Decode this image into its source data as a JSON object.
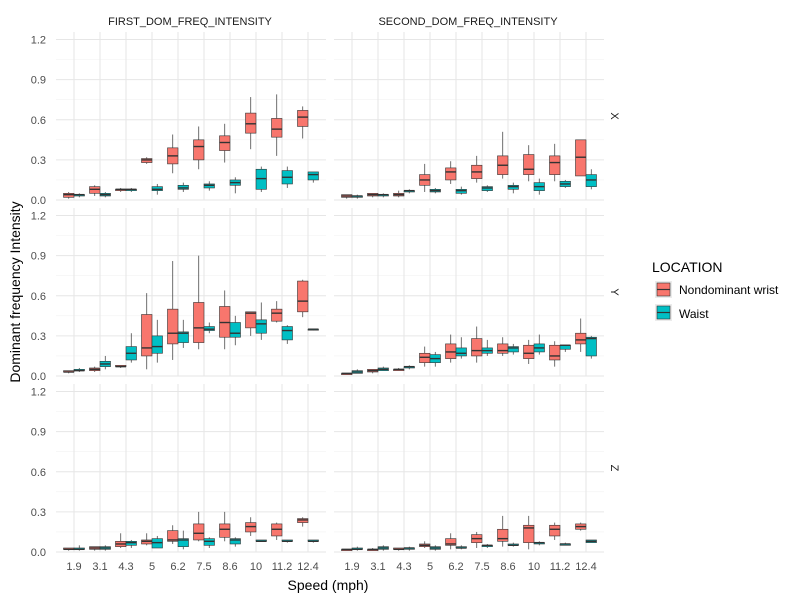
{
  "chart_data": {
    "type": "box",
    "xlabel": "Speed (mph)",
    "ylabel": "Dominant frequency Intensity",
    "categories": [
      "1.9",
      "3.1",
      "4.3",
      "5",
      "6.2",
      "7.5",
      "8.6",
      "10",
      "11.2",
      "12.4"
    ],
    "yticks": [
      "0.0",
      "0.3",
      "0.6",
      "0.9",
      "1.2"
    ],
    "ylim": [
      0,
      1.2
    ],
    "grid": true,
    "column_facets": [
      "FIRST_DOM_FREQ_INTENSITY",
      "SECOND_DOM_FREQ_INTENSITY"
    ],
    "row_facets": [
      "X",
      "Y",
      "Z"
    ],
    "legend": {
      "title": "LOCATION",
      "placement": "right",
      "items": [
        {
          "label": "Nondominant wrist",
          "color": "#f8766d"
        },
        {
          "label": "Waist",
          "color": "#00bfc4"
        }
      ]
    },
    "panels": [
      {
        "row": "X",
        "col": "FIRST_DOM_FREQ_INTENSITY",
        "series": {
          "Nondominant wrist": [
            [
              0.01,
              0.02,
              0.04,
              0.05,
              0.06
            ],
            [
              0.03,
              0.05,
              0.08,
              0.1,
              0.11
            ],
            [
              0.06,
              0.07,
              0.08,
              0.08,
              0.09
            ],
            [
              0.27,
              0.28,
              0.3,
              0.31,
              0.32
            ],
            [
              0.2,
              0.27,
              0.33,
              0.39,
              0.49
            ],
            [
              0.23,
              0.3,
              0.4,
              0.45,
              0.55
            ],
            [
              0.28,
              0.37,
              0.43,
              0.48,
              0.57
            ],
            [
              0.38,
              0.5,
              0.57,
              0.65,
              0.77
            ],
            [
              0.33,
              0.47,
              0.53,
              0.61,
              0.79
            ],
            [
              0.46,
              0.55,
              0.62,
              0.67,
              0.7
            ]
          ],
          "Waist": [
            [
              0.02,
              0.03,
              0.04,
              0.04,
              0.05
            ],
            [
              0.02,
              0.03,
              0.04,
              0.05,
              0.06
            ],
            [
              0.06,
              0.07,
              0.08,
              0.08,
              0.09
            ],
            [
              0.04,
              0.07,
              0.08,
              0.1,
              0.12
            ],
            [
              0.06,
              0.08,
              0.09,
              0.11,
              0.13
            ],
            [
              0.07,
              0.09,
              0.11,
              0.12,
              0.14
            ],
            [
              0.05,
              0.11,
              0.13,
              0.15,
              0.17
            ],
            [
              0.06,
              0.08,
              0.16,
              0.23,
              0.25
            ],
            [
              0.09,
              0.12,
              0.17,
              0.22,
              0.25
            ],
            [
              0.13,
              0.15,
              0.19,
              0.21,
              0.21
            ]
          ]
        }
      },
      {
        "row": "X",
        "col": "SECOND_DOM_FREQ_INTENSITY",
        "series": {
          "Nondominant wrist": [
            [
              0.01,
              0.02,
              0.03,
              0.04,
              0.04
            ],
            [
              0.02,
              0.03,
              0.04,
              0.05,
              0.05
            ],
            [
              0.02,
              0.03,
              0.04,
              0.05,
              0.07
            ],
            [
              0.06,
              0.11,
              0.15,
              0.19,
              0.27
            ],
            [
              0.12,
              0.15,
              0.21,
              0.24,
              0.29
            ],
            [
              0.13,
              0.16,
              0.21,
              0.26,
              0.33
            ],
            [
              0.16,
              0.19,
              0.26,
              0.33,
              0.51
            ],
            [
              0.14,
              0.19,
              0.23,
              0.34,
              0.41
            ],
            [
              0.14,
              0.19,
              0.28,
              0.33,
              0.42
            ],
            [
              0.18,
              0.18,
              0.32,
              0.45,
              0.45
            ]
          ],
          "Waist": [
            [
              0.01,
              0.02,
              0.03,
              0.03,
              0.04
            ],
            [
              0.02,
              0.03,
              0.04,
              0.04,
              0.05
            ],
            [
              0.05,
              0.06,
              0.07,
              0.07,
              0.08
            ],
            [
              0.05,
              0.06,
              0.07,
              0.08,
              0.09
            ],
            [
              0.04,
              0.05,
              0.07,
              0.08,
              0.1
            ],
            [
              0.06,
              0.07,
              0.09,
              0.1,
              0.11
            ],
            [
              0.05,
              0.08,
              0.1,
              0.11,
              0.13
            ],
            [
              0.04,
              0.07,
              0.1,
              0.13,
              0.16
            ],
            [
              0.09,
              0.1,
              0.12,
              0.14,
              0.15
            ],
            [
              0.08,
              0.1,
              0.15,
              0.19,
              0.23
            ]
          ]
        }
      },
      {
        "row": "Y",
        "col": "FIRST_DOM_FREQ_INTENSITY",
        "series": {
          "Nondominant wrist": [
            [
              0.02,
              0.03,
              0.03,
              0.04,
              0.04
            ],
            [
              0.03,
              0.04,
              0.05,
              0.06,
              0.07
            ],
            [
              0.06,
              0.07,
              0.07,
              0.08,
              0.08
            ],
            [
              0.05,
              0.15,
              0.21,
              0.46,
              0.62
            ],
            [
              0.12,
              0.24,
              0.32,
              0.5,
              0.86
            ],
            [
              0.2,
              0.25,
              0.36,
              0.55,
              0.9
            ],
            [
              0.2,
              0.29,
              0.4,
              0.52,
              0.64
            ],
            [
              0.3,
              0.36,
              0.47,
              0.48,
              0.48
            ],
            [
              0.4,
              0.41,
              0.47,
              0.5,
              0.56
            ],
            [
              0.44,
              0.48,
              0.56,
              0.71,
              0.72
            ]
          ],
          "Waist": [
            [
              0.03,
              0.04,
              0.04,
              0.05,
              0.06
            ],
            [
              0.05,
              0.07,
              0.09,
              0.11,
              0.15
            ],
            [
              0.1,
              0.12,
              0.17,
              0.22,
              0.32
            ],
            [
              0.1,
              0.17,
              0.22,
              0.3,
              0.42
            ],
            [
              0.21,
              0.25,
              0.32,
              0.33,
              0.42
            ],
            [
              0.32,
              0.34,
              0.35,
              0.37,
              0.4
            ],
            [
              0.23,
              0.29,
              0.32,
              0.4,
              0.45
            ],
            [
              0.27,
              0.32,
              0.39,
              0.42,
              0.55
            ],
            [
              0.24,
              0.27,
              0.34,
              0.37,
              0.38
            ],
            [
              0.34,
              0.35,
              0.35,
              0.35,
              0.35
            ]
          ]
        }
      },
      {
        "row": "Y",
        "col": "SECOND_DOM_FREQ_INTENSITY",
        "series": {
          "Nondominant wrist": [
            [
              0.01,
              0.01,
              0.02,
              0.02,
              0.02
            ],
            [
              0.02,
              0.03,
              0.04,
              0.05,
              0.05
            ],
            [
              0.04,
              0.04,
              0.05,
              0.05,
              0.06
            ],
            [
              0.07,
              0.1,
              0.14,
              0.17,
              0.22
            ],
            [
              0.1,
              0.13,
              0.18,
              0.24,
              0.31
            ],
            [
              0.1,
              0.15,
              0.19,
              0.28,
              0.37
            ],
            [
              0.15,
              0.17,
              0.19,
              0.24,
              0.29
            ],
            [
              0.09,
              0.13,
              0.17,
              0.23,
              0.27
            ],
            [
              0.07,
              0.12,
              0.15,
              0.23,
              0.26
            ],
            [
              0.18,
              0.24,
              0.27,
              0.32,
              0.43
            ]
          ],
          "Waist": [
            [
              0.02,
              0.02,
              0.03,
              0.04,
              0.05
            ],
            [
              0.04,
              0.04,
              0.05,
              0.06,
              0.07
            ],
            [
              0.05,
              0.06,
              0.07,
              0.07,
              0.08
            ],
            [
              0.07,
              0.1,
              0.13,
              0.16,
              0.18
            ],
            [
              0.13,
              0.15,
              0.17,
              0.21,
              0.29
            ],
            [
              0.15,
              0.17,
              0.19,
              0.21,
              0.27
            ],
            [
              0.16,
              0.18,
              0.21,
              0.22,
              0.24
            ],
            [
              0.16,
              0.18,
              0.21,
              0.24,
              0.31
            ],
            [
              0.18,
              0.2,
              0.23,
              0.23,
              0.23
            ],
            [
              0.13,
              0.15,
              0.28,
              0.29,
              0.3
            ]
          ]
        }
      },
      {
        "row": "Z",
        "col": "FIRST_DOM_FREQ_INTENSITY",
        "series": {
          "Nondominant wrist": [
            [
              0.01,
              0.02,
              0.02,
              0.03,
              0.03
            ],
            [
              0.01,
              0.02,
              0.03,
              0.04,
              0.04
            ],
            [
              0.03,
              0.04,
              0.06,
              0.08,
              0.14
            ],
            [
              0.05,
              0.06,
              0.08,
              0.09,
              0.14
            ],
            [
              0.06,
              0.08,
              0.09,
              0.16,
              0.2
            ],
            [
              0.08,
              0.09,
              0.14,
              0.21,
              0.3
            ],
            [
              0.08,
              0.11,
              0.17,
              0.21,
              0.3
            ],
            [
              0.12,
              0.15,
              0.19,
              0.22,
              0.26
            ],
            [
              0.09,
              0.12,
              0.17,
              0.21,
              0.22
            ],
            [
              0.19,
              0.22,
              0.24,
              0.25,
              0.26
            ]
          ],
          "Waist": [
            [
              0.01,
              0.02,
              0.02,
              0.03,
              0.05
            ],
            [
              0.01,
              0.02,
              0.03,
              0.04,
              0.05
            ],
            [
              0.03,
              0.05,
              0.07,
              0.08,
              0.09
            ],
            [
              0.03,
              0.03,
              0.07,
              0.1,
              0.12
            ],
            [
              0.02,
              0.04,
              0.09,
              0.1,
              0.16
            ],
            [
              0.03,
              0.05,
              0.08,
              0.1,
              0.11
            ],
            [
              0.04,
              0.06,
              0.09,
              0.1,
              0.11
            ],
            [
              0.08,
              0.08,
              0.08,
              0.09,
              0.09
            ],
            [
              0.07,
              0.08,
              0.08,
              0.09,
              0.09
            ],
            [
              0.07,
              0.08,
              0.08,
              0.09,
              0.09
            ]
          ]
        }
      },
      {
        "row": "Z",
        "col": "SECOND_DOM_FREQ_INTENSITY",
        "series": {
          "Nondominant wrist": [
            [
              0.01,
              0.01,
              0.02,
              0.02,
              0.02
            ],
            [
              0.01,
              0.01,
              0.02,
              0.02,
              0.03
            ],
            [
              0.01,
              0.02,
              0.02,
              0.03,
              0.03
            ],
            [
              0.03,
              0.04,
              0.05,
              0.06,
              0.08
            ],
            [
              0.02,
              0.05,
              0.06,
              0.1,
              0.14
            ],
            [
              0.03,
              0.07,
              0.1,
              0.13,
              0.15
            ],
            [
              0.04,
              0.08,
              0.1,
              0.17,
              0.27
            ],
            [
              0.02,
              0.07,
              0.18,
              0.2,
              0.27
            ],
            [
              0.09,
              0.12,
              0.17,
              0.2,
              0.22
            ],
            [
              0.16,
              0.17,
              0.19,
              0.21,
              0.22
            ]
          ],
          "Waist": [
            [
              0.01,
              0.02,
              0.02,
              0.03,
              0.04
            ],
            [
              0.01,
              0.02,
              0.03,
              0.04,
              0.05
            ],
            [
              0.01,
              0.02,
              0.03,
              0.03,
              0.04
            ],
            [
              0.01,
              0.02,
              0.03,
              0.04,
              0.05
            ],
            [
              0.02,
              0.03,
              0.03,
              0.04,
              0.05
            ],
            [
              0.03,
              0.04,
              0.05,
              0.05,
              0.06
            ],
            [
              0.04,
              0.05,
              0.05,
              0.06,
              0.07
            ],
            [
              0.05,
              0.06,
              0.07,
              0.07,
              0.08
            ],
            [
              0.05,
              0.05,
              0.06,
              0.06,
              0.07
            ],
            [
              0.07,
              0.07,
              0.08,
              0.09,
              0.09
            ]
          ]
        }
      }
    ]
  }
}
